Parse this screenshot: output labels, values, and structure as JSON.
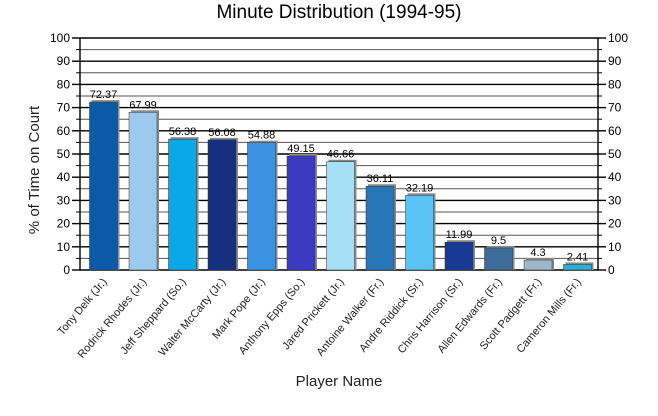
{
  "chart_data": {
    "type": "bar",
    "title": "Minute Distribution (1994-95)",
    "xlabel": "Player Name",
    "ylabel": "% of Time on Court",
    "ylim": [
      0,
      100
    ],
    "yticks": [
      0,
      10,
      20,
      30,
      40,
      50,
      60,
      70,
      80,
      90,
      100
    ],
    "grid": true,
    "legend": "none",
    "categories": [
      "Tony Delk (Jr.)",
      "Rodrick Rhodes (Jr.)",
      "Jeff Sheppard (So.)",
      "Walter McCarty (Jr.)",
      "Mark Pope (Jr.)",
      "Anthony Epps (So.)",
      "Jared Prickett (Jr.)",
      "Antoine Walker (Fr.)",
      "Andre Riddick (Sr.)",
      "Chris Harrison (Sr.)",
      "Allen Edwards (Fr.)",
      "Scott Padgett (Fr.)",
      "Cameron Mills (Fr.)"
    ],
    "values": [
      72.37,
      67.99,
      56.38,
      56.08,
      54.88,
      49.15,
      46.66,
      36.11,
      32.19,
      11.99,
      9.5,
      4.3,
      2.41
    ],
    "value_labels": [
      "72.37",
      "67.99",
      "56.38",
      "56.08",
      "54.88",
      "49.15",
      "46.66",
      "36.11",
      "32.19",
      "11.99",
      "9.5",
      "4.3",
      "2.41"
    ],
    "colors": [
      "#0a5aa8",
      "#9ccaee",
      "#0aa8e8",
      "#14307e",
      "#3a92e0",
      "#3a3ac2",
      "#a6e0f6",
      "#2676b8",
      "#5ac4f6",
      "#163a96",
      "#3c6c9a",
      "#9cb6cc",
      "#2aaed6"
    ]
  }
}
